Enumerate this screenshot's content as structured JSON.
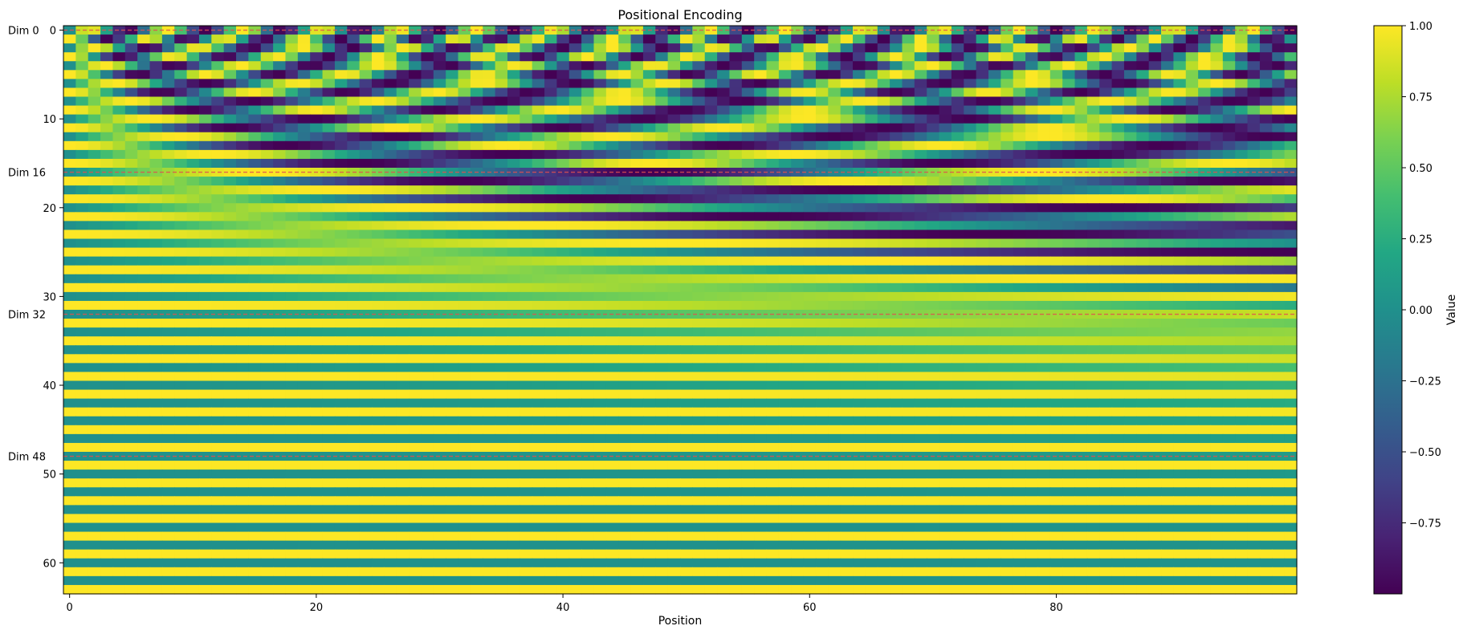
{
  "chart_data": {
    "type": "heatmap",
    "title": "Positional Encoding",
    "xlabel": "Position",
    "ylabel": "",
    "n_positions": 100,
    "n_dims": 64,
    "d_model": 64,
    "encoding": "sinusoidal: PE(pos,2i)=sin(pos/10000^(2i/d_model)), PE(pos,2i+1)=cos(pos/10000^(2i/d_model))",
    "x_ticks": [
      0,
      20,
      40,
      60,
      80
    ],
    "y_ticks": [
      0,
      10,
      20,
      30,
      40,
      50,
      60
    ],
    "xlim": [
      -0.5,
      99.5
    ],
    "ylim": [
      63.5,
      -0.5
    ],
    "value_range": [
      -1,
      1
    ],
    "colormap": "viridis",
    "colorbar": {
      "label": "Value",
      "ticks": [
        1.0,
        0.75,
        0.5,
        0.25,
        0.0,
        -0.25,
        -0.5,
        -0.75
      ],
      "tick_labels": [
        "1.00",
        "0.75",
        "0.50",
        "0.25",
        "0.00",
        "−0.25",
        "−0.50",
        "−0.75"
      ]
    },
    "reference_lines": [
      {
        "dim": 0,
        "label": "Dim 0"
      },
      {
        "dim": 16,
        "label": "Dim 16"
      },
      {
        "dim": 32,
        "label": "Dim 32"
      },
      {
        "dim": 48,
        "label": "Dim 48"
      }
    ],
    "reference_line_color": "#e05050"
  }
}
